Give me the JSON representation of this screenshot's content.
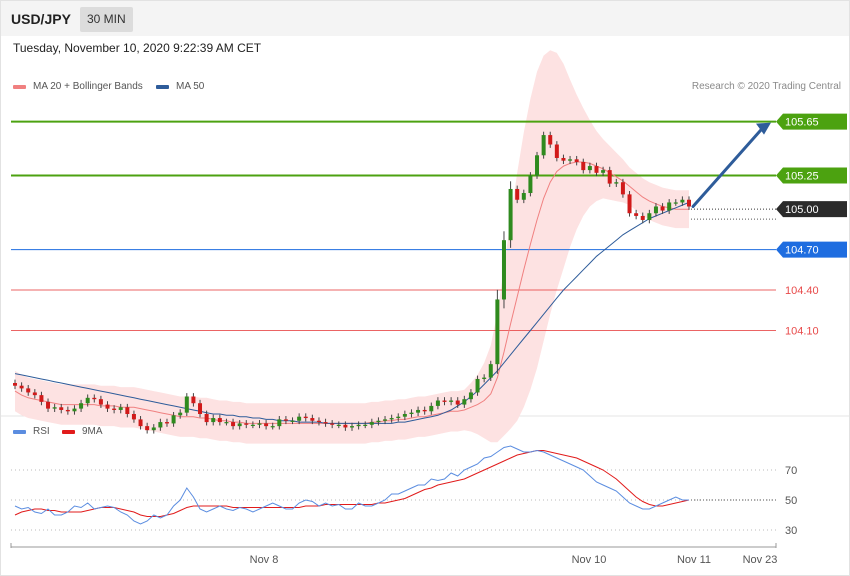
{
  "header": {
    "pair": "USD/JPY",
    "timeframe": "30 MIN"
  },
  "date_line": "Tuesday, November 10, 2020 9:22:39 AM CET",
  "credit": "Research © 2020 Trading Central",
  "colors": {
    "resistance": "#4ca210",
    "current": "#2b2b2b",
    "pivot": "#1e6de0",
    "support": "#e84a4a",
    "candle_up": "#2f8a1e",
    "candle_down": "#d11a1a",
    "ma20": "#f08080",
    "bollinger_fill": "#fde2e2",
    "ma50": "#2e5c9a",
    "rsi": "#5b8de0",
    "rsi_ma": "#e11b1b",
    "arrow": "#2e5c9a"
  },
  "chart_data": [
    {
      "type": "candlestick",
      "title": "",
      "legend": [
        {
          "name": "MA 20 + Bollinger Bands",
          "color": "#f08080"
        },
        {
          "name": "MA 50",
          "color": "#2e5c9a"
        }
      ],
      "ylim": [
        103.48,
        105.84
      ],
      "x_ticks": [
        "Nov 8",
        "Nov 10",
        "Nov 11",
        "Nov 23"
      ],
      "levels": [
        {
          "value": 105.65,
          "label": "105.65",
          "kind": "resistance"
        },
        {
          "value": 105.25,
          "label": "105.25",
          "kind": "resistance"
        },
        {
          "value": 105.0,
          "label": "105.00",
          "kind": "current"
        },
        {
          "value": 104.7,
          "label": "104.70",
          "kind": "pivot"
        },
        {
          "value": 104.4,
          "label": "104.40",
          "kind": "support"
        },
        {
          "value": 104.1,
          "label": "104.10",
          "kind": "support"
        }
      ],
      "forecast_target": 105.65,
      "closes": [
        103.69,
        103.67,
        103.64,
        103.62,
        103.57,
        103.52,
        103.53,
        103.51,
        103.5,
        103.52,
        103.56,
        103.6,
        103.59,
        103.55,
        103.52,
        103.51,
        103.53,
        103.48,
        103.44,
        103.39,
        103.36,
        103.38,
        103.42,
        103.41,
        103.47,
        103.49,
        103.61,
        103.56,
        103.48,
        103.42,
        103.45,
        103.42,
        103.42,
        103.39,
        103.41,
        103.4,
        103.4,
        103.41,
        103.39,
        103.39,
        103.44,
        103.43,
        103.43,
        103.46,
        103.45,
        103.43,
        103.42,
        103.41,
        103.4,
        103.4,
        103.38,
        103.39,
        103.4,
        103.4,
        103.42,
        103.43,
        103.44,
        103.45,
        103.46,
        103.48,
        103.49,
        103.51,
        103.5,
        103.54,
        103.58,
        103.57,
        103.58,
        103.55,
        103.59,
        103.64,
        103.74,
        103.75,
        103.85,
        104.33,
        104.77,
        105.15,
        105.07,
        105.12,
        105.25,
        105.4,
        105.55,
        105.48,
        105.38,
        105.36,
        105.37,
        105.35,
        105.29,
        105.32,
        105.27,
        105.29,
        105.19,
        105.2,
        105.11,
        104.97,
        104.95,
        104.92,
        104.97,
        105.02,
        104.99,
        105.05,
        105.05,
        105.07,
        105.02
      ],
      "ma20": [
        103.65,
        103.62,
        103.6,
        103.59,
        103.58,
        103.57,
        103.56,
        103.55,
        103.55,
        103.55,
        103.55,
        103.55,
        103.55,
        103.54,
        103.54,
        103.54,
        103.53,
        103.53,
        103.53,
        103.52,
        103.51,
        103.5,
        103.49,
        103.48,
        103.47,
        103.46,
        103.46,
        103.46,
        103.45,
        103.45,
        103.44,
        103.43,
        103.43,
        103.42,
        103.42,
        103.41,
        103.41,
        103.41,
        103.41,
        103.41,
        103.41,
        103.41,
        103.41,
        103.41,
        103.41,
        103.41,
        103.41,
        103.41,
        103.41,
        103.41,
        103.41,
        103.41,
        103.41,
        103.41,
        103.42,
        103.42,
        103.43,
        103.43,
        103.44,
        103.44,
        103.45,
        103.46,
        103.46,
        103.47,
        103.48,
        103.49,
        103.5,
        103.5,
        103.51,
        103.53,
        103.55,
        103.58,
        103.63,
        103.75,
        103.94,
        104.15,
        104.35,
        104.55,
        104.74,
        104.92,
        105.08,
        105.2,
        105.28,
        105.32,
        105.34,
        105.35,
        105.35,
        105.34,
        105.32,
        105.3,
        105.27,
        105.24,
        105.21,
        105.17,
        105.13,
        105.09,
        105.06,
        105.04,
        105.02,
        105.01,
        105.0,
        105.0,
        105.0
      ],
      "bb_width": [
        0.15,
        0.15,
        0.15,
        0.15,
        0.15,
        0.15,
        0.15,
        0.15,
        0.15,
        0.15,
        0.15,
        0.15,
        0.15,
        0.15,
        0.15,
        0.15,
        0.15,
        0.15,
        0.15,
        0.15,
        0.15,
        0.15,
        0.15,
        0.15,
        0.15,
        0.15,
        0.15,
        0.15,
        0.15,
        0.15,
        0.15,
        0.15,
        0.15,
        0.15,
        0.15,
        0.15,
        0.15,
        0.15,
        0.15,
        0.15,
        0.15,
        0.15,
        0.15,
        0.15,
        0.15,
        0.15,
        0.15,
        0.15,
        0.15,
        0.15,
        0.15,
        0.15,
        0.15,
        0.15,
        0.15,
        0.15,
        0.15,
        0.15,
        0.15,
        0.15,
        0.15,
        0.15,
        0.15,
        0.15,
        0.15,
        0.15,
        0.15,
        0.15,
        0.15,
        0.18,
        0.22,
        0.28,
        0.36,
        0.48,
        0.62,
        0.78,
        0.92,
        1.02,
        1.08,
        1.1,
        1.06,
        0.98,
        0.88,
        0.76,
        0.62,
        0.5,
        0.4,
        0.32,
        0.26,
        0.22,
        0.2,
        0.18,
        0.16,
        0.14,
        0.14,
        0.14,
        0.14,
        0.14,
        0.14,
        0.14,
        0.14,
        0.14,
        0.14
      ],
      "ma50": [
        103.78,
        103.77,
        103.76,
        103.75,
        103.74,
        103.73,
        103.72,
        103.71,
        103.7,
        103.69,
        103.68,
        103.67,
        103.66,
        103.65,
        103.64,
        103.63,
        103.62,
        103.61,
        103.6,
        103.59,
        103.58,
        103.57,
        103.56,
        103.55,
        103.54,
        103.53,
        103.52,
        103.51,
        103.5,
        103.49,
        103.48,
        103.48,
        103.47,
        103.47,
        103.46,
        103.46,
        103.45,
        103.45,
        103.44,
        103.44,
        103.43,
        103.43,
        103.43,
        103.42,
        103.42,
        103.42,
        103.42,
        103.41,
        103.41,
        103.41,
        103.41,
        103.41,
        103.41,
        103.41,
        103.41,
        103.41,
        103.41,
        103.41,
        103.42,
        103.42,
        103.43,
        103.44,
        103.45,
        103.46,
        103.47,
        103.49,
        103.51,
        103.54,
        103.57,
        103.61,
        103.65,
        103.7,
        103.75,
        103.8,
        103.86,
        103.92,
        103.98,
        104.04,
        104.1,
        104.16,
        104.22,
        104.28,
        104.34,
        104.4,
        104.45,
        104.5,
        104.55,
        104.6,
        104.65,
        104.69,
        104.73,
        104.77,
        104.81,
        104.84,
        104.87,
        104.9,
        104.93,
        104.95,
        104.97,
        104.99,
        105.01,
        105.03,
        105.05
      ]
    },
    {
      "type": "line",
      "title": "",
      "legend": [
        {
          "name": "RSI",
          "color": "#5b8de0"
        },
        {
          "name": "9MA",
          "color": "#e11b1b"
        }
      ],
      "ylim": [
        20,
        90
      ],
      "y_ticks": [
        70,
        50,
        30
      ],
      "series": [
        {
          "name": "RSI",
          "values": [
            46,
            44,
            45,
            42,
            41,
            44,
            40,
            40,
            42,
            46,
            45,
            48,
            44,
            45,
            46,
            45,
            42,
            40,
            36,
            34,
            36,
            40,
            38,
            40,
            46,
            50,
            58,
            52,
            44,
            42,
            44,
            46,
            44,
            43,
            45,
            44,
            42,
            44,
            46,
            48,
            46,
            44,
            44,
            48,
            50,
            49,
            46,
            48,
            46,
            47,
            44,
            44,
            48,
            46,
            46,
            48,
            50,
            54,
            54,
            56,
            58,
            60,
            60,
            64,
            63,
            64,
            68,
            66,
            70,
            72,
            74,
            78,
            79,
            82,
            85,
            86,
            84,
            82,
            82,
            83,
            82,
            80,
            78,
            76,
            74,
            72,
            70,
            66,
            62,
            60,
            58,
            56,
            52,
            48,
            46,
            44,
            44,
            46,
            48,
            50,
            52,
            50,
            50
          ]
        },
        {
          "name": "9MA",
          "values": [
            40,
            42,
            43,
            44,
            44,
            43,
            43,
            42,
            42,
            42,
            42,
            43,
            44,
            45,
            45,
            45,
            44,
            43,
            42,
            40,
            39,
            39,
            39,
            40,
            41,
            43,
            45,
            46,
            46,
            46,
            46,
            46,
            46,
            45,
            45,
            45,
            45,
            45,
            45,
            45,
            45,
            45,
            45,
            45,
            46,
            46,
            46,
            47,
            47,
            47,
            47,
            47,
            47,
            47,
            47,
            48,
            48,
            49,
            50,
            51,
            53,
            55,
            57,
            58,
            60,
            61,
            62,
            63,
            64,
            66,
            68,
            70,
            72,
            74,
            76,
            78,
            80,
            81,
            82,
            83,
            83,
            82,
            81,
            80,
            79,
            78,
            76,
            74,
            72,
            70,
            67,
            64,
            60,
            56,
            52,
            49,
            47,
            46,
            46,
            47,
            48,
            49,
            50
          ]
        }
      ]
    }
  ]
}
